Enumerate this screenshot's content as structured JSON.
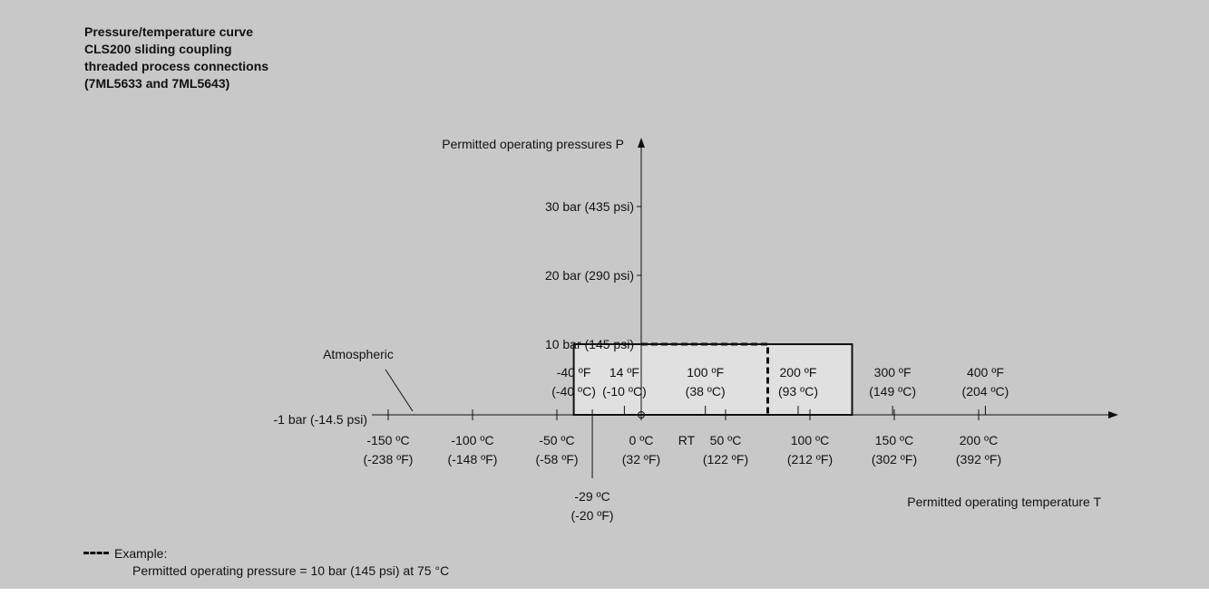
{
  "title_lines": [
    "Pressure/temperature curve",
    "CLS200 sliding coupling",
    "threaded process connections",
    "(7ML5633 and 7ML5643)"
  ],
  "chart_data": {
    "type": "line",
    "y_axis_title": "Permitted operating pressures P",
    "x_axis_title": "Permitted operating temperature T",
    "y_ticks": [
      {
        "value": -1,
        "label": "-1 bar (-14.5 psi)"
      },
      {
        "value": 10,
        "label": "10 bar (145 psi)"
      },
      {
        "value": 20,
        "label": "20 bar (290 psi)"
      },
      {
        "value": 30,
        "label": "30 bar (435 psi)"
      }
    ],
    "x_ticks_celsius": [
      {
        "value": -150,
        "c": "-150 ºC",
        "f": "(-238 ºF)"
      },
      {
        "value": -100,
        "c": "-100 ºC",
        "f": "(-148 ºF)"
      },
      {
        "value": -50,
        "c": "-50 ºC",
        "f": "(-58 ºF)"
      },
      {
        "value": 0,
        "c": "0 ºC",
        "f": "(32 ºF)"
      },
      {
        "value": 50,
        "c": "50 ºC",
        "f": "(122 ºF)"
      },
      {
        "value": 100,
        "c": "100 ºC",
        "f": "(212 ºF)"
      },
      {
        "value": 150,
        "c": "150 ºC",
        "f": "(302 ºF)"
      },
      {
        "value": 200,
        "c": "200 ºC",
        "f": "(392 ºF)"
      }
    ],
    "x_ticks_fahrenheit": [
      {
        "value": -40,
        "f": "-40 ºF",
        "c": "(-40 ºC)"
      },
      {
        "value": -10,
        "f": "14 ºF",
        "c": "(-10 ºC)"
      },
      {
        "value": 38,
        "f": "100 ºF",
        "c": "(38 ºC)"
      },
      {
        "value": 93,
        "f": "200 ºF",
        "c": "(93 ºC)"
      },
      {
        "value": 149,
        "f": "300 ºF",
        "c": "(149 ºC)"
      },
      {
        "value": 204,
        "f": "400 ºF",
        "c": "(204 ºC)"
      }
    ],
    "rt_label": "RT",
    "atmospheric_label": "Atmospheric",
    "min_temp_marker": {
      "value": -29,
      "c": "-29 ºC",
      "f": "(-20 ºF)"
    },
    "permitted_region": {
      "t_min": -40,
      "t_max": 125,
      "p_min": -1,
      "p_max": 10
    },
    "example": {
      "temperature": 75,
      "pressure": 10
    },
    "colors": {
      "background": "#c8c8c8",
      "region_fill": "#e0e0e0",
      "ink": "#111111"
    }
  },
  "legend": {
    "label": "Example:",
    "text": "Permitted operating pressure = 10 bar (145 psi) at 75 °C"
  }
}
